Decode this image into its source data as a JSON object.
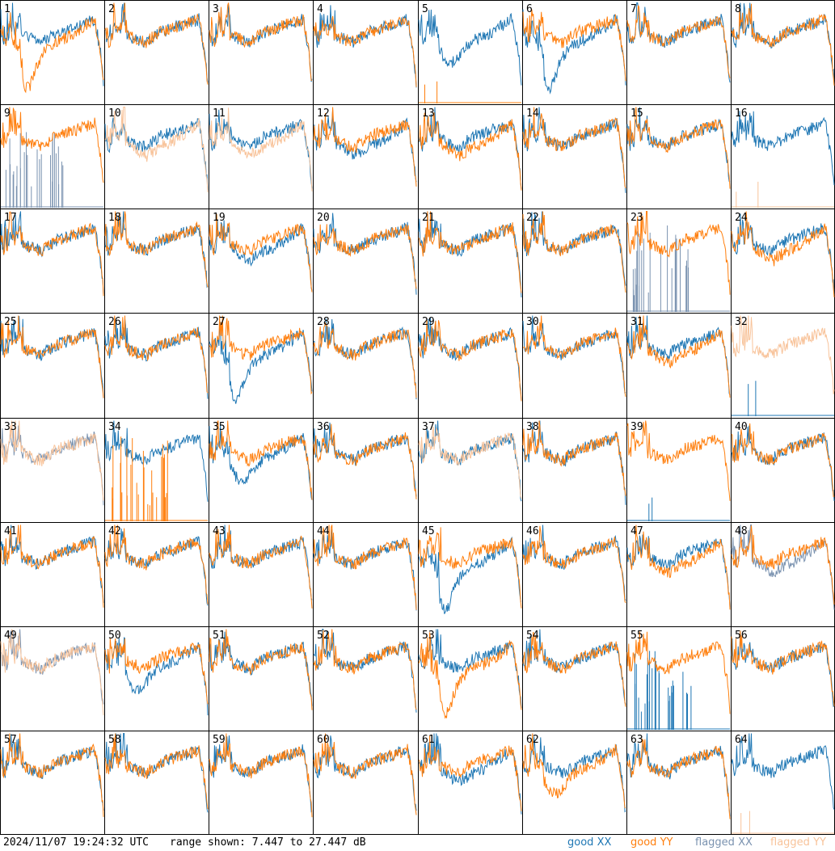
{
  "footer": {
    "timestamp": "2024/11/07 19:24:32 UTC",
    "range_text": "range shown: 7.447 to 27.447 dB"
  },
  "legend": [
    {
      "prefix": "good",
      "pol": "XX",
      "color": "#1f77b4"
    },
    {
      "prefix": "good",
      "pol": "YY",
      "color": "#ff7f0e"
    },
    {
      "prefix": "flagged",
      "pol": "XX",
      "color": "#7b93b0"
    },
    {
      "prefix": "flagged",
      "pol": "YY",
      "color": "#f8c39a"
    }
  ],
  "chart_data": {
    "type": "line",
    "layout": "8x8 small multiples",
    "units": "dB",
    "ylim": [
      7.447,
      27.447
    ],
    "colors": {
      "good_xx": "#1f77b4",
      "good_yy": "#ff7f0e",
      "flagged_xx": "#7b93b0",
      "flagged_yy": "#f8c39a"
    },
    "panels": [
      {
        "id": 1,
        "xx": "n",
        "yy": "dip_deep",
        "xf": 0,
        "yf": 0
      },
      {
        "id": 2,
        "xx": "n",
        "yy": "n",
        "xf": 0,
        "yf": 0
      },
      {
        "id": 3,
        "xx": "n",
        "yy": "n",
        "xf": 0,
        "yf": 0
      },
      {
        "id": 4,
        "xx": "n",
        "yy": "n",
        "xf": 0,
        "yf": 0
      },
      {
        "id": 5,
        "xx": "dip_mid",
        "yy": "spikes_yy",
        "xf": 0,
        "yf": 0
      },
      {
        "id": 6,
        "xx": "dip_deep",
        "yy": "n",
        "xf": 0,
        "yf": 0
      },
      {
        "id": 7,
        "xx": "n",
        "yy": "n",
        "xf": 0,
        "yf": 0
      },
      {
        "id": 8,
        "xx": "n",
        "yy": "n",
        "xf": 0,
        "yf": 0
      },
      {
        "id": 9,
        "xx": "spikes",
        "yy": "n",
        "xf": 1,
        "yf": 0
      },
      {
        "id": 10,
        "xx": "n",
        "yy": "low",
        "xf": 0,
        "yf": 1
      },
      {
        "id": 11,
        "xx": "n",
        "yy": "low",
        "xf": 0,
        "yf": 1
      },
      {
        "id": 12,
        "xx": "low",
        "yy": "n",
        "xf": 0,
        "yf": 0
      },
      {
        "id": 13,
        "xx": "n",
        "yy": "low",
        "xf": 0,
        "yf": 0
      },
      {
        "id": 14,
        "xx": "n",
        "yy": "n",
        "xf": 0,
        "yf": 0
      },
      {
        "id": 15,
        "xx": "n",
        "yy": "n",
        "xf": 0,
        "yf": 0
      },
      {
        "id": 16,
        "xx": "n",
        "yy": "spikes_yy",
        "xf": 0,
        "yf": 1
      },
      {
        "id": 17,
        "xx": "n",
        "yy": "n",
        "xf": 0,
        "yf": 0
      },
      {
        "id": 18,
        "xx": "n",
        "yy": "n",
        "xf": 0,
        "yf": 0
      },
      {
        "id": 19,
        "xx": "low",
        "yy": "n",
        "xf": 0,
        "yf": 0
      },
      {
        "id": 20,
        "xx": "n",
        "yy": "n",
        "xf": 0,
        "yf": 0
      },
      {
        "id": 21,
        "xx": "n",
        "yy": "n",
        "xf": 0,
        "yf": 0
      },
      {
        "id": 22,
        "xx": "n",
        "yy": "n",
        "xf": 0,
        "yf": 0
      },
      {
        "id": 23,
        "xx": "spikes",
        "yy": "n",
        "xf": 1,
        "yf": 0
      },
      {
        "id": 24,
        "xx": "n",
        "yy": "low",
        "xf": 0,
        "yf": 0
      },
      {
        "id": 25,
        "xx": "n",
        "yy": "n",
        "xf": 0,
        "yf": 0
      },
      {
        "id": 26,
        "xx": "n",
        "yy": "n",
        "xf": 0,
        "yf": 0
      },
      {
        "id": 27,
        "xx": "dip_deep",
        "yy": "n",
        "xf": 0,
        "yf": 0
      },
      {
        "id": 28,
        "xx": "n",
        "yy": "n",
        "xf": 0,
        "yf": 0
      },
      {
        "id": 29,
        "xx": "n",
        "yy": "n",
        "xf": 0,
        "yf": 0
      },
      {
        "id": 30,
        "xx": "n",
        "yy": "n",
        "xf": 0,
        "yf": 0
      },
      {
        "id": 31,
        "xx": "n",
        "yy": "low",
        "xf": 0,
        "yf": 0
      },
      {
        "id": 32,
        "xx": "spikes_yy",
        "yy": "n",
        "xf": 0,
        "yf": 1
      },
      {
        "id": 33,
        "xx": "n",
        "yy": "n",
        "xf": 1,
        "yf": 1
      },
      {
        "id": 34,
        "xx": "n",
        "yy": "spikes",
        "xf": 0,
        "yf": 0
      },
      {
        "id": 35,
        "xx": "dip_mid",
        "yy": "n",
        "xf": 0,
        "yf": 0
      },
      {
        "id": 36,
        "xx": "n",
        "yy": "n",
        "xf": 0,
        "yf": 0
      },
      {
        "id": 37,
        "xx": "n",
        "yy": "n",
        "xf": 0,
        "yf": 1
      },
      {
        "id": 38,
        "xx": "n",
        "yy": "n",
        "xf": 0,
        "yf": 0
      },
      {
        "id": 39,
        "xx": "spikes_yy",
        "yy": "n",
        "xf": 0,
        "yf": 0
      },
      {
        "id": 40,
        "xx": "n",
        "yy": "n",
        "xf": 0,
        "yf": 0
      },
      {
        "id": 41,
        "xx": "n",
        "yy": "n",
        "xf": 0,
        "yf": 0
      },
      {
        "id": 42,
        "xx": "n",
        "yy": "n",
        "xf": 0,
        "yf": 0
      },
      {
        "id": 43,
        "xx": "n",
        "yy": "n",
        "xf": 0,
        "yf": 0
      },
      {
        "id": 44,
        "xx": "n",
        "yy": "n",
        "xf": 0,
        "yf": 0
      },
      {
        "id": 45,
        "xx": "dip_deep",
        "yy": "n",
        "xf": 0,
        "yf": 0
      },
      {
        "id": 46,
        "xx": "n",
        "yy": "n",
        "xf": 0,
        "yf": 0
      },
      {
        "id": 47,
        "xx": "n",
        "yy": "low",
        "xf": 0,
        "yf": 0
      },
      {
        "id": 48,
        "xx": "low",
        "yy": "n",
        "xf": 1,
        "yf": 0
      },
      {
        "id": 49,
        "xx": "n",
        "yy": "n",
        "xf": 1,
        "yf": 1
      },
      {
        "id": 50,
        "xx": "dip_mid",
        "yy": "n",
        "xf": 0,
        "yf": 0
      },
      {
        "id": 51,
        "xx": "n",
        "yy": "n",
        "xf": 0,
        "yf": 0
      },
      {
        "id": 52,
        "xx": "n",
        "yy": "n",
        "xf": 0,
        "yf": 0
      },
      {
        "id": 53,
        "xx": "n",
        "yy": "dip_deep",
        "xf": 0,
        "yf": 0
      },
      {
        "id": 54,
        "xx": "n",
        "yy": "n",
        "xf": 0,
        "yf": 0
      },
      {
        "id": 55,
        "xx": "spikes",
        "yy": "n",
        "xf": 0,
        "yf": 0
      },
      {
        "id": 56,
        "xx": "n",
        "yy": "n",
        "xf": 0,
        "yf": 0
      },
      {
        "id": 57,
        "xx": "n",
        "yy": "n",
        "xf": 0,
        "yf": 0
      },
      {
        "id": 58,
        "xx": "n",
        "yy": "n",
        "xf": 0,
        "yf": 0
      },
      {
        "id": 59,
        "xx": "n",
        "yy": "n",
        "xf": 0,
        "yf": 0
      },
      {
        "id": 60,
        "xx": "n",
        "yy": "n",
        "xf": 0,
        "yf": 0
      },
      {
        "id": 61,
        "xx": "low",
        "yy": "n",
        "xf": 0,
        "yf": 0
      },
      {
        "id": 62,
        "xx": "n",
        "yy": "dip_mid",
        "xf": 0,
        "yf": 0
      },
      {
        "id": 63,
        "xx": "n",
        "yy": "n",
        "xf": 0,
        "yf": 0
      },
      {
        "id": 64,
        "xx": "n",
        "yy": "spikes_yy",
        "xf": 0,
        "yf": 1
      }
    ]
  }
}
